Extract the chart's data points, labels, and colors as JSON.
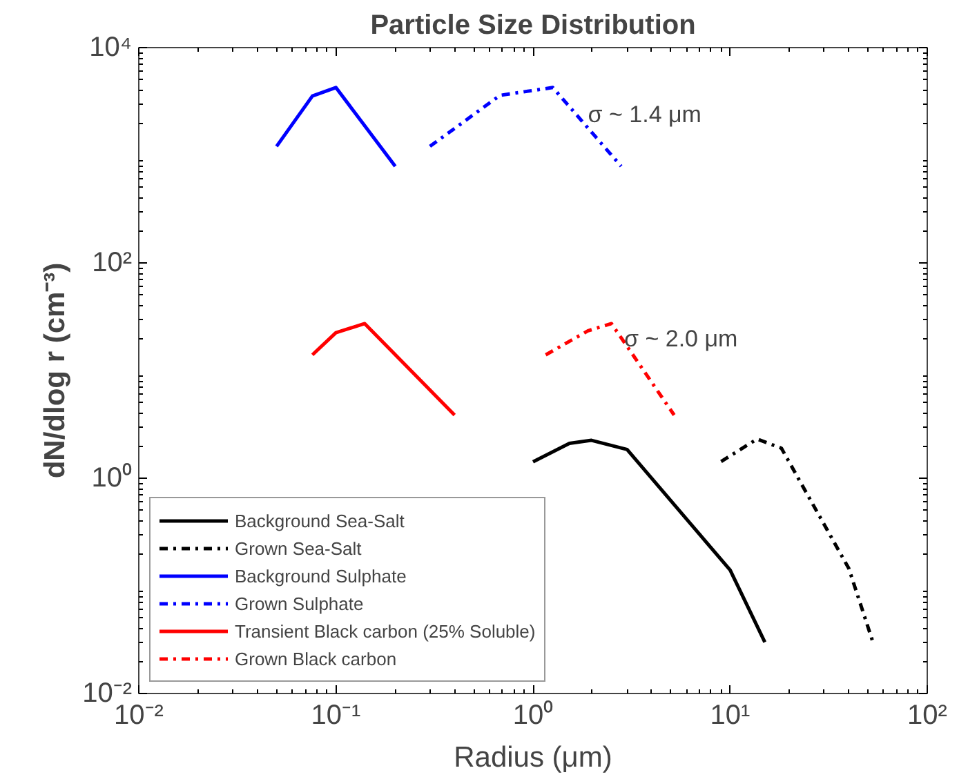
{
  "chart_data": {
    "type": "line",
    "title": "Particle Size Distribution",
    "xlabel": "Radius (μm)",
    "ylabel": "dN/dlog r (cm⁻³)",
    "log": "xy",
    "grid": false,
    "legend": "bottom left",
    "marker": "none",
    "xlim": [
      0.01,
      100
    ],
    "ylim": [
      0.01,
      10000
    ],
    "xticks": [
      {
        "value": 0.01,
        "label": "10⁻²"
      },
      {
        "value": 0.1,
        "label": "10⁻¹"
      },
      {
        "value": 1,
        "label": "10⁰"
      },
      {
        "value": 10,
        "label": "10¹"
      },
      {
        "value": 100,
        "label": "10²"
      }
    ],
    "yticks": [
      {
        "value": 0.01,
        "label": "10⁻²"
      },
      {
        "value": 1,
        "label": "10⁰"
      },
      {
        "value": 100,
        "label": "10²"
      },
      {
        "value": 10000,
        "label": "10⁴"
      }
    ],
    "annotations": [
      "σ ~ 1.4 μm",
      "σ ~ 2.0 μm"
    ],
    "series": [
      {
        "name": "Background Sea-Salt",
        "color": "#000000",
        "line_style": "solid",
        "x": [
          1.0,
          1.53,
          1.98,
          3.0,
          10,
          15
        ],
        "values": [
          1.42,
          2.11,
          2.25,
          1.85,
          0.14,
          0.03
        ]
      },
      {
        "name": "Grown Sea-Salt",
        "color": "#000000",
        "line_style": "dashdot",
        "x": [
          9,
          13.7,
          18.2,
          40,
          53
        ],
        "values": [
          1.43,
          2.31,
          1.9,
          0.145,
          0.03
        ]
      },
      {
        "name": "Background Sulphate",
        "color": "#0000ff",
        "line_style": "solid",
        "x": [
          0.05,
          0.076,
          0.1,
          0.2
        ],
        "values": [
          1210,
          3550,
          4260,
          790
        ]
      },
      {
        "name": "Grown Sulphate",
        "color": "#0000ff",
        "line_style": "dashdot",
        "x": [
          0.3,
          0.68,
          1.26,
          2.8
        ],
        "values": [
          1210,
          3600,
          4260,
          790
        ]
      },
      {
        "name": "Transient Black carbon (25% Soluble)",
        "color": "#ff0000",
        "line_style": "solid",
        "x": [
          0.076,
          0.1,
          0.14,
          0.4
        ],
        "values": [
          14,
          22.5,
          27.3,
          3.86
        ]
      },
      {
        "name": "Grown Black carbon",
        "color": "#ff0000",
        "line_style": "dashdot",
        "x": [
          1.16,
          1.9,
          2.5,
          5.2
        ],
        "values": [
          14,
          23.4,
          27.3,
          3.86
        ]
      }
    ]
  }
}
